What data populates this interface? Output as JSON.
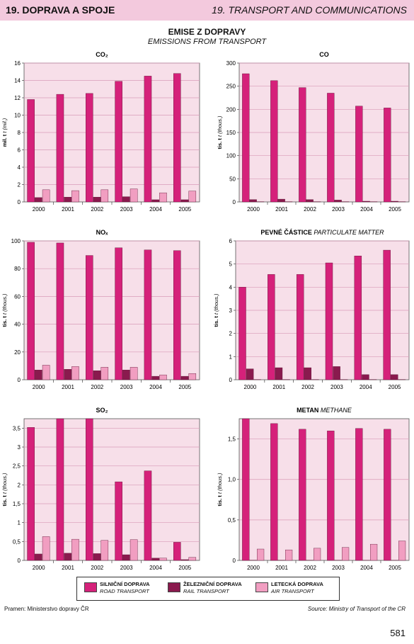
{
  "header": {
    "left": "19. DOPRAVA A SPOJE",
    "right": "19. TRANSPORT AND COMMUNICATIONS"
  },
  "title": {
    "cz": "EMISE Z DOPRAVY",
    "en": "EMISSIONS FROM TRANSPORT"
  },
  "colors": {
    "road": "#d5217a",
    "rail": "#8a1a4e",
    "air": "#f19ec1",
    "plot_bg": "#f7dfe9",
    "grid": "#d99bb8"
  },
  "legend": [
    {
      "cz": "SILNIČNÍ DOPRAVA",
      "en": "ROAD TRANSPORT"
    },
    {
      "cz": "ŽELEZNIČNÍ DOPRAVA",
      "en": "RAIL TRANSPORT"
    },
    {
      "cz": "LETECKÁ DOPRAVA",
      "en": "AIR TRANSPORT"
    }
  ],
  "chart_data": [
    {
      "type": "bar",
      "title": "CO₂",
      "title_en": "",
      "ylabel": "mil. t",
      "ylabel_en": "t (mil.)",
      "categories": [
        "2000",
        "2001",
        "2002",
        "2003",
        "2004",
        "2005"
      ],
      "ylim": [
        0,
        16
      ],
      "yticks": [
        0,
        2,
        4,
        6,
        8,
        10,
        12,
        14,
        16
      ],
      "ytick_labels": [
        "0",
        "2",
        "4",
        "6",
        "8",
        "10",
        "12",
        "14",
        "16"
      ],
      "series": [
        {
          "key": "road",
          "values": [
            11.8,
            12.4,
            12.5,
            13.9,
            14.5,
            14.8
          ]
        },
        {
          "key": "rail",
          "values": [
            0.5,
            0.55,
            0.55,
            0.6,
            0.25,
            0.25
          ]
        },
        {
          "key": "air",
          "values": [
            1.4,
            1.3,
            1.4,
            1.5,
            1.05,
            1.25
          ]
        }
      ]
    },
    {
      "type": "bar",
      "title": "CO",
      "title_en": "",
      "ylabel": "tis. t",
      "ylabel_en": "t (thous.)",
      "categories": [
        "2000",
        "2001",
        "2002",
        "2003",
        "2004",
        "2005"
      ],
      "ylim": [
        0,
        300
      ],
      "yticks": [
        0,
        50,
        100,
        150,
        200,
        250,
        300
      ],
      "ytick_labels": [
        "0",
        "50",
        "100",
        "150",
        "200",
        "250",
        "300"
      ],
      "series": [
        {
          "key": "road",
          "values": [
            277,
            262,
            247,
            235,
            207,
            203
          ]
        },
        {
          "key": "rail",
          "values": [
            5,
            6,
            5,
            4,
            1.5,
            1.5
          ]
        },
        {
          "key": "air",
          "values": [
            0.5,
            0.5,
            0.5,
            0.5,
            0.5,
            0.5
          ]
        }
      ]
    },
    {
      "type": "bar",
      "title": "NOₓ",
      "title_en": "",
      "ylabel": "tis. t",
      "ylabel_en": "t (thous.)",
      "categories": [
        "2000",
        "2001",
        "2002",
        "2003",
        "2004",
        "2005"
      ],
      "ylim": [
        0,
        100
      ],
      "yticks": [
        0,
        20,
        40,
        60,
        80,
        100
      ],
      "ytick_labels": [
        "0",
        "20",
        "40",
        "60",
        "80",
        "100"
      ],
      "series": [
        {
          "key": "road",
          "values": [
            99,
            98.5,
            89.5,
            95,
            93.5,
            93
          ]
        },
        {
          "key": "rail",
          "values": [
            7,
            7.5,
            6.5,
            7,
            2.5,
            2.5
          ]
        },
        {
          "key": "air",
          "values": [
            10.5,
            9.5,
            9,
            9,
            3.5,
            4.5
          ]
        }
      ]
    },
    {
      "type": "bar",
      "title": "PEVNÉ ČÁSTICE",
      "title_en": "PARTICULATE MATTER",
      "ylabel": "tis. t",
      "ylabel_en": "t (thous.)",
      "categories": [
        "2000",
        "2001",
        "2002",
        "2003",
        "2004",
        "2005"
      ],
      "ylim": [
        0,
        6
      ],
      "yticks": [
        0,
        1,
        2,
        3,
        4,
        5,
        6
      ],
      "ytick_labels": [
        "0",
        "1",
        "2",
        "3",
        "4",
        "5",
        "6"
      ],
      "series": [
        {
          "key": "road",
          "values": [
            4.0,
            4.55,
            4.55,
            5.05,
            5.35,
            5.6
          ]
        },
        {
          "key": "rail",
          "values": [
            0.47,
            0.52,
            0.52,
            0.57,
            0.22,
            0.22
          ]
        },
        {
          "key": "air",
          "values": [
            0.01,
            0.01,
            0.01,
            0.01,
            0.01,
            0.01
          ]
        }
      ]
    },
    {
      "type": "bar",
      "title": "SO₂",
      "title_en": "",
      "ylabel": "tis. t",
      "ylabel_en": "t (thous.)",
      "categories": [
        "2000",
        "2001",
        "2002",
        "2003",
        "2004",
        "2005"
      ],
      "ylim": [
        0,
        3.75
      ],
      "yticks": [
        0,
        0.5,
        1,
        1.5,
        2,
        2.5,
        3,
        3.5
      ],
      "ytick_labels": [
        "0",
        "0,5",
        "1",
        "1,5",
        "2",
        "2,5",
        "3",
        "3,5"
      ],
      "series": [
        {
          "key": "road",
          "values": [
            3.52,
            3.75,
            3.75,
            2.08,
            2.37,
            0.48
          ]
        },
        {
          "key": "rail",
          "values": [
            0.17,
            0.19,
            0.18,
            0.15,
            0.06,
            0.02
          ]
        },
        {
          "key": "air",
          "values": [
            0.63,
            0.56,
            0.53,
            0.55,
            0.06,
            0.08
          ]
        }
      ]
    },
    {
      "type": "bar",
      "title": "METAN",
      "title_en": "METHANE",
      "ylabel": "tis. t",
      "ylabel_en": "t (thous.)",
      "categories": [
        "2000",
        "2001",
        "2002",
        "2003",
        "2004",
        "2005"
      ],
      "ylim": [
        0,
        1.75
      ],
      "yticks": [
        0,
        0.5,
        1,
        1.5
      ],
      "ytick_labels": [
        "0",
        "0,5",
        "1,0",
        "1,5"
      ],
      "series": [
        {
          "key": "road",
          "values": [
            1.75,
            1.69,
            1.62,
            1.6,
            1.63,
            1.62
          ]
        },
        {
          "key": "rail",
          "values": [
            0.002,
            0.002,
            0.002,
            0.002,
            0.001,
            0.001
          ]
        },
        {
          "key": "air",
          "values": [
            0.14,
            0.13,
            0.15,
            0.16,
            0.2,
            0.24
          ]
        }
      ]
    }
  ],
  "source": {
    "cz": "Pramen: Ministerstvo dopravy ČR",
    "en": "Source: Ministry of Transport of the CR"
  },
  "page_number": "581"
}
